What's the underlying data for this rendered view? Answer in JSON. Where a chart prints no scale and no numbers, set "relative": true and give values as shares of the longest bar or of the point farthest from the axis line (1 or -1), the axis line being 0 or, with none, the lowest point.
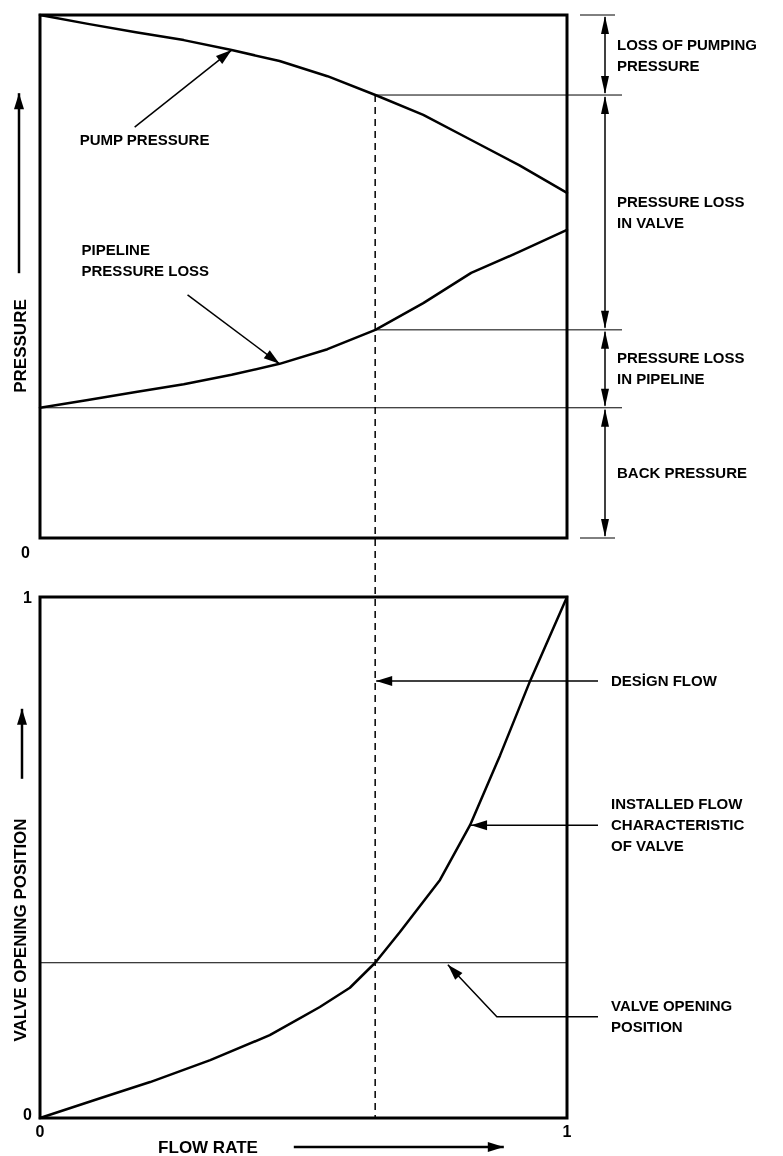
{
  "chart_data": [
    {
      "type": "line",
      "relative": true,
      "ylabel": "PRESSURE",
      "categories": [
        null,
        null,
        null,
        null,
        null,
        null,
        null,
        null,
        null,
        null,
        null,
        null
      ],
      "series": [
        {
          "color": "#000000",
          "values": [
            1,
            0.983,
            0.967,
            0.952,
            0.933,
            0.912,
            0.883,
            0.847,
            0.809,
            0.761,
            0.713,
            0.66
          ]
        },
        {
          "color": "#000000",
          "values": [
            0.249,
            0.264,
            0.279,
            0.294,
            0.312,
            0.333,
            0.361,
            0.398,
            0.449,
            0.507,
            0.547,
            0.589
          ]
        }
      ],
      "ref_lines": [
        {
          "axis": "y",
          "value": 0.847
        },
        {
          "axis": "y",
          "value": 0.398
        },
        {
          "axis": "y",
          "value": 0.249
        }
      ],
      "annotations": [
        "PUMP PRESSURE",
        "PIPELINE PRESSURE LOSS",
        "0",
        "LOSS OF PUMPING PRESSURE",
        "PRESSURE LOSS IN VALVE",
        "PRESSURE LOSS IN PIPELINE",
        "BACK PRESSURE"
      ]
    },
    {
      "type": "line",
      "xlabel": "FLOW RATE",
      "ylabel": "VALVE OPENING POSITION",
      "xlim": [
        0,
        1
      ],
      "ylim": [
        0,
        1
      ],
      "xticks": [
        0,
        1
      ],
      "yticks": [
        0,
        1
      ],
      "series": [
        {
          "color": "#000000",
          "x": [
            0,
            0.114,
            0.209,
            0.323,
            0.436,
            0.531,
            0.588,
            0.636,
            0.683,
            0.759,
            0.816,
            0.873,
            0.93,
            1
          ],
          "values": [
            0,
            0.038,
            0.069,
            0.111,
            0.159,
            0.213,
            0.25,
            0.298,
            0.357,
            0.457,
            0.562,
            0.696,
            0.839,
            1
          ]
        }
      ],
      "ref_lines": [
        {
          "axis": "x",
          "value": 0.636,
          "line_style": "dashed"
        },
        {
          "axis": "y",
          "value": 0.298
        }
      ],
      "annotations": [
        {
          "text": "DESİGN FLOW",
          "x": 0.636,
          "y": 0.839
        },
        {
          "text": "INSTALLED FLOW CHARACTERISTIC OF VALVE",
          "x": 0.816,
          "y": 0.562
        },
        {
          "text": "VALVE OPENING POSITION",
          "x": 0.772,
          "y": 0.298
        }
      ]
    }
  ]
}
